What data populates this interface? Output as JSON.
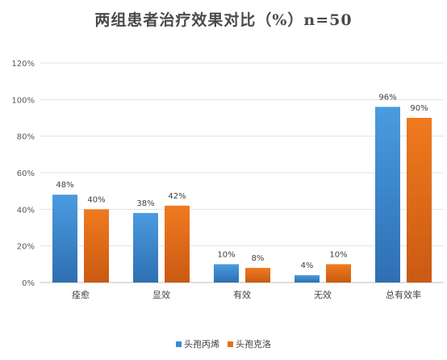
{
  "chart_data": {
    "type": "bar",
    "title": "两组患者治疗效果对比（%）n=50",
    "categories": [
      "痊愈",
      "显效",
      "有效",
      "无效",
      "总有效率"
    ],
    "series": [
      {
        "name": "头孢丙烯",
        "values": [
          48,
          38,
          10,
          4,
          96
        ],
        "labels": [
          "48%",
          "38%",
          "10%",
          "4%",
          "96%"
        ],
        "color": "#3a8ad0"
      },
      {
        "name": "头孢克洛",
        "values": [
          40,
          42,
          8,
          10,
          90
        ],
        "labels": [
          "40%",
          "42%",
          "8%",
          "10%",
          "90%"
        ],
        "color": "#e56f1a"
      }
    ],
    "yticks": [
      "0%",
      "20%",
      "40%",
      "60%",
      "80%",
      "100%",
      "120%"
    ],
    "ylim": [
      0,
      120
    ],
    "grid": true,
    "legend_position": "bottom",
    "xlabel": "",
    "ylabel": ""
  }
}
